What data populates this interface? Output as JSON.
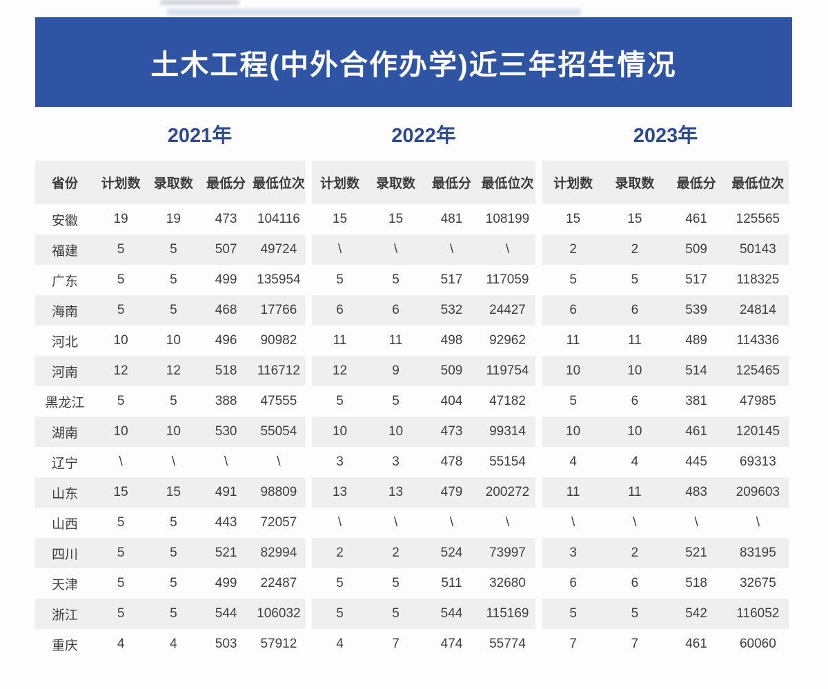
{
  "title": "土木工程(中外合作办学)近三年招生情况",
  "years": [
    "2021年",
    "2022年",
    "2023年"
  ],
  "columns": {
    "province": "省份",
    "plan": "计划数",
    "admitted": "录取数",
    "min_score": "最低分",
    "min_rank": "最低位次"
  },
  "colors": {
    "banner_blue": "#2f54a4",
    "year_navy": "#2b4a94",
    "stripe_gray": "#efefef",
    "text_dark": "#3e3e3e",
    "title_white": "#ffffff"
  },
  "rows": [
    {
      "province": "安徽",
      "y2021": [
        "19",
        "19",
        "473",
        "104116"
      ],
      "y2022": [
        "15",
        "15",
        "481",
        "108199"
      ],
      "y2023": [
        "15",
        "15",
        "461",
        "125565"
      ]
    },
    {
      "province": "福建",
      "y2021": [
        "5",
        "5",
        "507",
        "49724"
      ],
      "y2022": [
        "\\",
        "\\",
        "\\",
        "\\"
      ],
      "y2023": [
        "2",
        "2",
        "509",
        "50143"
      ]
    },
    {
      "province": "广东",
      "y2021": [
        "5",
        "5",
        "499",
        "135954"
      ],
      "y2022": [
        "5",
        "5",
        "517",
        "117059"
      ],
      "y2023": [
        "5",
        "5",
        "517",
        "118325"
      ]
    },
    {
      "province": "海南",
      "y2021": [
        "5",
        "5",
        "468",
        "17766"
      ],
      "y2022": [
        "6",
        "6",
        "532",
        "24427"
      ],
      "y2023": [
        "6",
        "6",
        "539",
        "24814"
      ]
    },
    {
      "province": "河北",
      "y2021": [
        "10",
        "10",
        "496",
        "90982"
      ],
      "y2022": [
        "11",
        "11",
        "498",
        "92962"
      ],
      "y2023": [
        "11",
        "11",
        "489",
        "114336"
      ]
    },
    {
      "province": "河南",
      "y2021": [
        "12",
        "12",
        "518",
        "116712"
      ],
      "y2022": [
        "12",
        "9",
        "509",
        "119754"
      ],
      "y2023": [
        "10",
        "10",
        "514",
        "125465"
      ]
    },
    {
      "province": "黑龙江",
      "y2021": [
        "5",
        "5",
        "388",
        "47555"
      ],
      "y2022": [
        "5",
        "5",
        "404",
        "47182"
      ],
      "y2023": [
        "5",
        "6",
        "381",
        "47985"
      ]
    },
    {
      "province": "湖南",
      "y2021": [
        "10",
        "10",
        "530",
        "55054"
      ],
      "y2022": [
        "10",
        "10",
        "473",
        "99314"
      ],
      "y2023": [
        "10",
        "10",
        "461",
        "120145"
      ]
    },
    {
      "province": "辽宁",
      "y2021": [
        "\\",
        "\\",
        "\\",
        "\\"
      ],
      "y2022": [
        "3",
        "3",
        "478",
        "55154"
      ],
      "y2023": [
        "4",
        "4",
        "445",
        "69313"
      ]
    },
    {
      "province": "山东",
      "y2021": [
        "15",
        "15",
        "491",
        "98809"
      ],
      "y2022": [
        "13",
        "13",
        "479",
        "200272"
      ],
      "y2023": [
        "11",
        "11",
        "483",
        "209603"
      ]
    },
    {
      "province": "山西",
      "y2021": [
        "5",
        "5",
        "443",
        "72057"
      ],
      "y2022": [
        "\\",
        "\\",
        "\\",
        "\\"
      ],
      "y2023": [
        "\\",
        "\\",
        "\\",
        "\\"
      ]
    },
    {
      "province": "四川",
      "y2021": [
        "5",
        "5",
        "521",
        "82994"
      ],
      "y2022": [
        "2",
        "2",
        "524",
        "73997"
      ],
      "y2023": [
        "3",
        "2",
        "521",
        "83195"
      ]
    },
    {
      "province": "天津",
      "y2021": [
        "5",
        "5",
        "499",
        "22487"
      ],
      "y2022": [
        "5",
        "5",
        "511",
        "32680"
      ],
      "y2023": [
        "6",
        "6",
        "518",
        "32675"
      ]
    },
    {
      "province": "浙江",
      "y2021": [
        "5",
        "5",
        "544",
        "106032"
      ],
      "y2022": [
        "5",
        "5",
        "544",
        "115169"
      ],
      "y2023": [
        "5",
        "5",
        "542",
        "116052"
      ]
    },
    {
      "province": "重庆",
      "y2021": [
        "4",
        "4",
        "503",
        "57912"
      ],
      "y2022": [
        "4",
        "7",
        "474",
        "55774"
      ],
      "y2023": [
        "7",
        "7",
        "461",
        "60060"
      ]
    }
  ]
}
